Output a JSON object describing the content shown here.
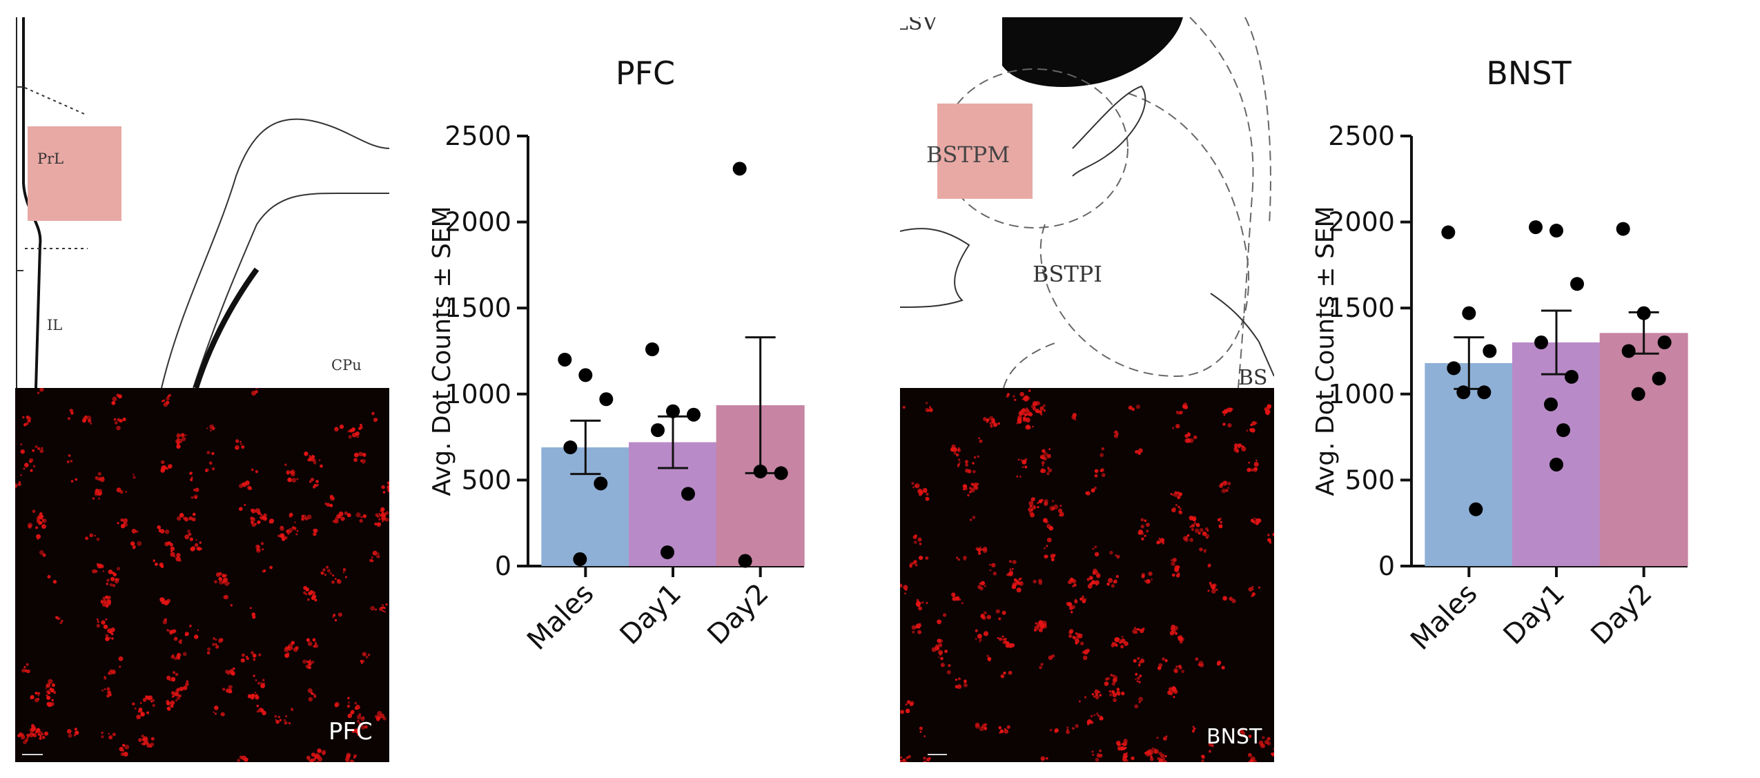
{
  "panels": {
    "pfc_atlas": {
      "labels": {
        "prl": "PrL",
        "il": "IL",
        "cpu": "CPu"
      },
      "highlight_color": "#e8a9a5"
    },
    "pfc_image": {
      "label": "PFC",
      "dot_color": "#e51414",
      "background": "#0b0202"
    },
    "bnst_atlas": {
      "labels": {
        "lsv": "LSV",
        "bstpm": "BSTPM",
        "bstpi": "BSTPI",
        "bs": "BS"
      },
      "highlight_color": "#e8a9a5"
    },
    "bnst_image": {
      "label": "BNST",
      "dot_color": "#e51414",
      "background": "#0b0202"
    }
  },
  "chart_data": [
    {
      "type": "bar",
      "title": "PFC",
      "xlabel": "",
      "ylabel": "Avg. Dot Counts ± SEM",
      "ylim": [
        0,
        2500
      ],
      "yticks": [
        0,
        500,
        1000,
        1500,
        2000,
        2500
      ],
      "categories": [
        "Males",
        "Day1",
        "Day2"
      ],
      "values": [
        690,
        720,
        935
      ],
      "sem": [
        155,
        150,
        395
      ],
      "bar_colors": [
        "#8fb0d6",
        "#b98ac8",
        "#c784a3"
      ],
      "points": [
        [
          1200,
          1110,
          970,
          690,
          480,
          40
        ],
        [
          1260,
          900,
          880,
          790,
          420,
          80
        ],
        [
          2310,
          550,
          540,
          30
        ]
      ]
    },
    {
      "type": "bar",
      "title": "BNST",
      "xlabel": "",
      "ylabel": "Avg. Dot Counts ± SEM",
      "ylim": [
        0,
        2500
      ],
      "yticks": [
        0,
        500,
        1000,
        1500,
        2000,
        2500
      ],
      "categories": [
        "Males",
        "Day1",
        "Day2"
      ],
      "values": [
        1180,
        1300,
        1355
      ],
      "sem": [
        150,
        185,
        120
      ],
      "bar_colors": [
        "#8fb0d6",
        "#b98ac8",
        "#c784a3"
      ],
      "points": [
        [
          1940,
          1470,
          1250,
          1150,
          1010,
          1010,
          330
        ],
        [
          1970,
          1950,
          1640,
          1300,
          1100,
          940,
          790,
          590
        ],
        [
          1960,
          1470,
          1300,
          1250,
          1090,
          1000
        ]
      ]
    }
  ]
}
